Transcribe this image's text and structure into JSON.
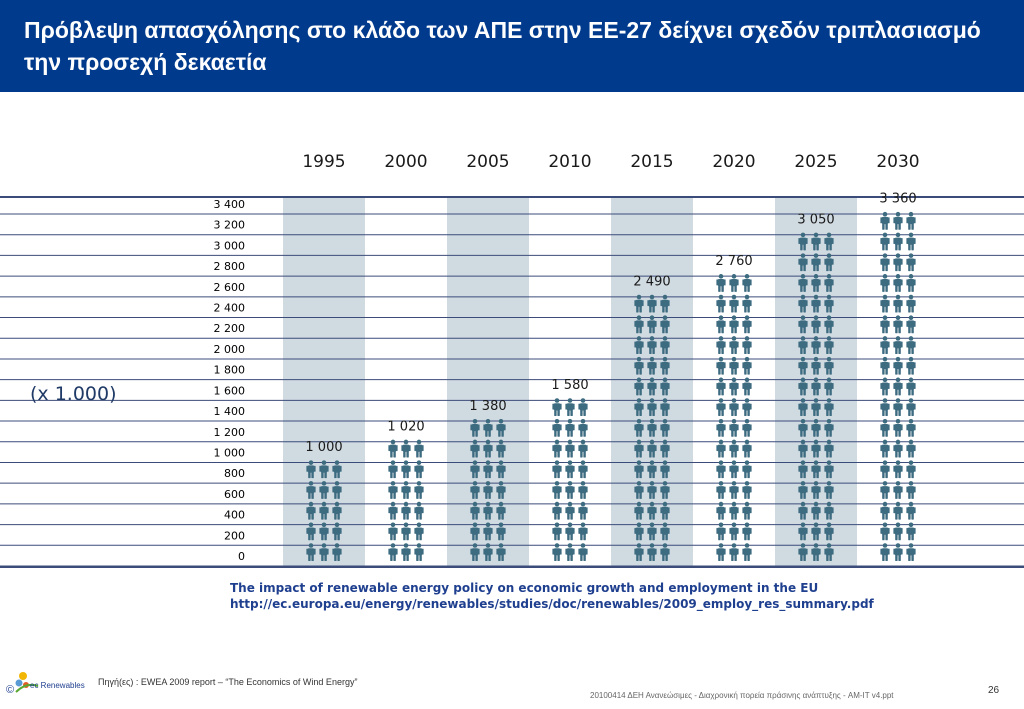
{
  "title": "Πρόβλεψη απασχόλησης στο κλάδο των ΑΠΕ στην ΕΕ-27 δείχνει σχεδόν τριπλασιασμό την προσεχή δεκαετία",
  "unit_label": "(x 1.000)",
  "source_title": "The impact of renewable energy policy on economic growth and employment in the EU",
  "source_url": "http://ec.europa.eu/energy/renewables/studies/doc/renewables/2009_employ_res_summary.pdf",
  "footer": {
    "logo_text": "ec Renewables",
    "copyright": "©",
    "source": "Πηγή(ες) : EWEA 2009 report – “The Economics of Wind Energy”",
    "file": "20100414 ΔΕΗ Ανανεώσιμες - Διαχρονική πορεία πράσινης ανάπτυξης - AM-IT v4.ppt",
    "page_number": "26"
  },
  "colors": {
    "header_bg": "#003a8c",
    "band": "#d0dae1",
    "icon": "#3d6b80",
    "grid": "#3b4c7a",
    "text_dark": "#1f3a66",
    "source_blue": "#1f3f8f"
  },
  "chart_data": {
    "type": "bar",
    "bar_style": "pictogram",
    "categories": [
      "1995",
      "2000",
      "2005",
      "2010",
      "2015",
      "2020",
      "2025",
      "2030"
    ],
    "values": [
      1000,
      1020,
      1380,
      1580,
      2490,
      2760,
      3050,
      3360
    ],
    "value_labels": [
      "1 000",
      "1 020",
      "1 380",
      "1 580",
      "2 490",
      "2 760",
      "3 050",
      "3 360"
    ],
    "y_ticks": [
      "3 400",
      "3 200",
      "3 000",
      "2 800",
      "2 600",
      "2 400",
      "2 200",
      "2 000",
      "1 800",
      "1 600",
      "1 400",
      "1 200",
      "1 000",
      "800",
      "600",
      "400",
      "200",
      "0"
    ],
    "y_tick_values": [
      3400,
      3200,
      3000,
      2800,
      2600,
      2400,
      2200,
      2000,
      1800,
      1600,
      1400,
      1200,
      1000,
      800,
      600,
      400,
      200,
      0
    ],
    "ylim": [
      0,
      3400
    ],
    "ylabel": "(x 1.000)",
    "grid": true,
    "shaded_columns": [
      "1995",
      "2005",
      "2015",
      "2025"
    ]
  }
}
